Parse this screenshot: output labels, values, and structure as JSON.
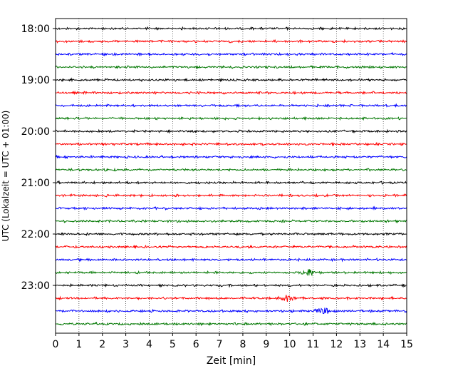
{
  "chart_data": {
    "type": "line",
    "title": "",
    "xlabel": "Zeit  [min]",
    "ylabel": "UTC (Lokalzeit = UTC + 01:00)",
    "xlim": [
      0,
      15
    ],
    "xticks": [
      0,
      1,
      2,
      3,
      4,
      5,
      6,
      7,
      8,
      9,
      10,
      11,
      12,
      13,
      14,
      15
    ],
    "ytick_labels": [
      "18:00",
      "19:00",
      "20:00",
      "21:00",
      "22:00",
      "23:00"
    ],
    "grid": "vertical dotted",
    "minutes_per_trace": 15,
    "trace_start": "18:00",
    "trace_colors": [
      "#000000",
      "#ff0000",
      "#0000ff",
      "#007700"
    ],
    "traces": [
      {
        "start": "18:00",
        "color": "#000000"
      },
      {
        "start": "18:15",
        "color": "#ff0000"
      },
      {
        "start": "18:30",
        "color": "#0000ff"
      },
      {
        "start": "18:45",
        "color": "#007700"
      },
      {
        "start": "19:00",
        "color": "#000000"
      },
      {
        "start": "19:15",
        "color": "#ff0000"
      },
      {
        "start": "19:30",
        "color": "#0000ff"
      },
      {
        "start": "19:45",
        "color": "#007700"
      },
      {
        "start": "20:00",
        "color": "#000000"
      },
      {
        "start": "20:15",
        "color": "#ff0000"
      },
      {
        "start": "20:30",
        "color": "#0000ff"
      },
      {
        "start": "20:45",
        "color": "#007700"
      },
      {
        "start": "21:00",
        "color": "#000000"
      },
      {
        "start": "21:15",
        "color": "#ff0000"
      },
      {
        "start": "21:30",
        "color": "#0000ff"
      },
      {
        "start": "21:45",
        "color": "#007700"
      },
      {
        "start": "22:00",
        "color": "#000000"
      },
      {
        "start": "22:15",
        "color": "#ff0000"
      },
      {
        "start": "22:30",
        "color": "#0000ff"
      },
      {
        "start": "22:45",
        "color": "#007700"
      },
      {
        "start": "23:00",
        "color": "#000000"
      },
      {
        "start": "23:15",
        "color": "#ff0000"
      },
      {
        "start": "23:30",
        "color": "#0000ff"
      },
      {
        "start": "23:45",
        "color": "#007700"
      }
    ],
    "events": [
      {
        "trace_start": "22:45",
        "minute": 10.8
      },
      {
        "trace_start": "23:15",
        "minute": 9.9
      },
      {
        "trace_start": "23:30",
        "minute": 11.4
      }
    ]
  }
}
